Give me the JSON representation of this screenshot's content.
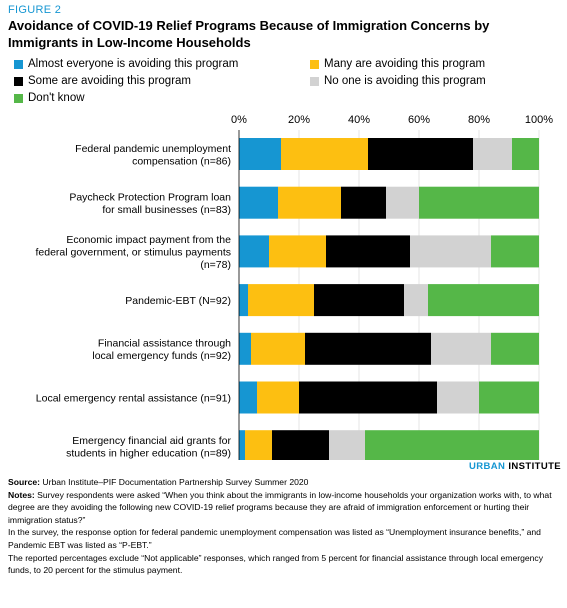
{
  "figure_label": "FIGURE 2",
  "title": "Avoidance of COVID-19 Relief Programs Because of Immigration Concerns by Immigrants in Low-Income Households",
  "legend": [
    {
      "label": "Almost everyone is avoiding this program",
      "color": "#1696d2"
    },
    {
      "label": "Many are avoiding this program",
      "color": "#fdbf11"
    },
    {
      "label": "Some are avoiding this program",
      "color": "#000000"
    },
    {
      "label": "No one is avoiding this program",
      "color": "#d2d2d2"
    },
    {
      "label": "Don't know",
      "color": "#55b748"
    }
  ],
  "chart_data": {
    "type": "bar",
    "orientation": "horizontal",
    "stacked": true,
    "xlim": [
      0,
      100
    ],
    "x_ticks": [
      "0%",
      "20%",
      "40%",
      "60%",
      "80%",
      "100%"
    ],
    "legend_position": "top",
    "categories": [
      [
        "Federal pandemic unemployment",
        "compensation (n=86)"
      ],
      [
        "Paycheck Protection Program loan",
        "for small businesses (n=83)"
      ],
      [
        "Economic impact payment from the",
        "federal government, or stimulus payments",
        "(n=78)"
      ],
      [
        "Pandemic-EBT (N=92)"
      ],
      [
        "Financial assistance through",
        "local emergency funds (n=92)"
      ],
      [
        "Local emergency rental assistance (n=91)"
      ],
      [
        "Emergency financial aid grants for",
        "students in higher education (n=89)"
      ]
    ],
    "series": [
      {
        "name": "Almost everyone is avoiding this program",
        "values": [
          14,
          13,
          10,
          3,
          4,
          6,
          2
        ]
      },
      {
        "name": "Many are avoiding this program",
        "values": [
          29,
          21,
          19,
          22,
          18,
          14,
          9
        ]
      },
      {
        "name": "Some are avoiding this program",
        "values": [
          35,
          15,
          28,
          30,
          42,
          46,
          19
        ]
      },
      {
        "name": "No one is avoiding this program",
        "values": [
          13,
          11,
          27,
          8,
          20,
          14,
          12
        ]
      },
      {
        "name": "Don't know",
        "values": [
          9,
          40,
          16,
          37,
          16,
          20,
          58
        ]
      }
    ]
  },
  "brand": {
    "urban": "URBAN",
    "institute": " INSTITUTE"
  },
  "source": {
    "source_label": "Source:",
    "source_text": " Urban Institute–PIF Documentation Partnership Survey Summer 2020",
    "notes_label": "Notes:",
    "notes_text": " Survey respondents were asked “When you think about the immigrants in low-income households your organization works with, to what degree are they avoiding the following new COVID-19 relief programs because they are afraid of immigration enforcement or hurting their immigration status?”",
    "note2": "In the survey, the response option for federal pandemic unemployment compensation was listed as “Unemployment insurance benefits,” and Pandemic EBT was listed as “P-EBT.”",
    "note3": "The reported percentages exclude “Not applicable” responses, which ranged from 5 percent for financial assistance through local emergency funds, to 20 percent for the stimulus payment."
  }
}
